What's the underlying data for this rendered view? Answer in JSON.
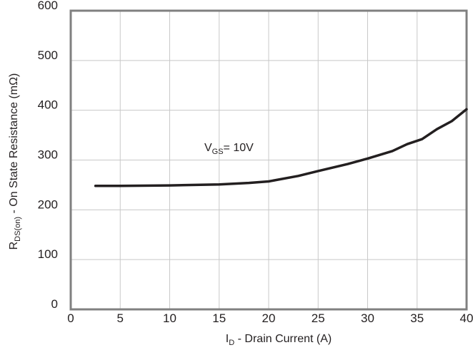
{
  "chart_data": {
    "type": "line",
    "xlabel": {
      "main": "I",
      "sub": "D",
      "rest": " - Drain Current (A)"
    },
    "ylabel": {
      "main": "R",
      "sub": "DS(on)",
      "rest": " - On State Resistance (mΩ)"
    },
    "xlim": [
      0,
      40
    ],
    "ylim": [
      0,
      600
    ],
    "x_ticks": [
      0,
      5,
      10,
      15,
      20,
      25,
      30,
      35,
      40
    ],
    "x_tick_labels": [
      "0",
      "5",
      "10",
      "15",
      "20",
      "25",
      "30",
      "35",
      "40"
    ],
    "y_ticks": [
      0,
      100,
      200,
      300,
      400,
      500,
      600
    ],
    "y_tick_labels": [
      "0",
      "100",
      "200",
      "300",
      "400",
      "500",
      "600"
    ],
    "grid": true,
    "annotation": {
      "main": "V",
      "sub": "GS",
      "rest": "= 10V",
      "x": 13.5,
      "y": 318
    },
    "series": [
      {
        "x": [
          2.5,
          5,
          10,
          15,
          18,
          20,
          23,
          25,
          28,
          30,
          32.5,
          34,
          35.5,
          37,
          38.5,
          40
        ],
        "y": [
          248,
          248,
          249,
          251,
          254,
          257,
          268,
          278,
          292,
          303,
          318,
          332,
          342,
          362,
          378,
          402
        ]
      }
    ]
  },
  "colors": {
    "line": "#231f20",
    "axis": "#808080",
    "grid": "#c8c8c8",
    "text": "#231f20"
  }
}
